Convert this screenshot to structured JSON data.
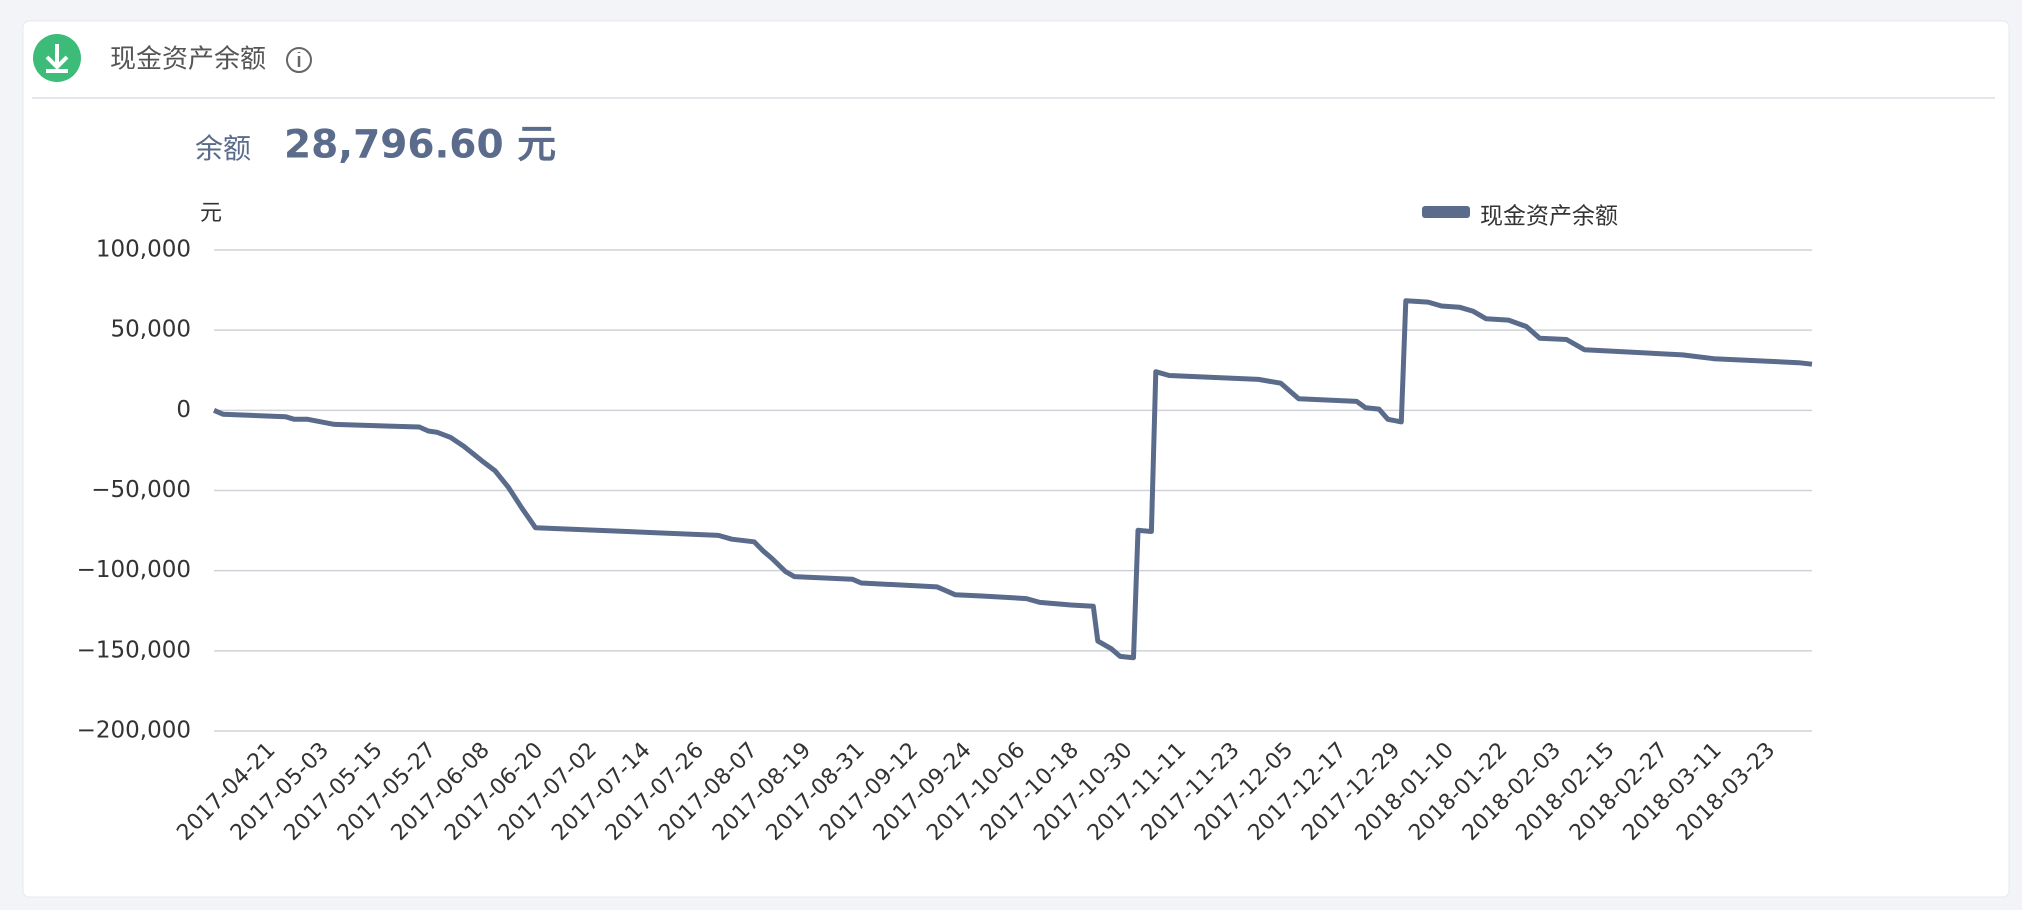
{
  "header": {
    "title": "现金资产余额"
  },
  "balance": {
    "label": "余额",
    "value": "28,796.60 元"
  },
  "chart_data": {
    "type": "line",
    "y_unit": "元",
    "legend": "top-right",
    "grid": true,
    "x": [
      "2017-04-08",
      "2017-04-10",
      "2017-04-24",
      "2017-04-26",
      "2017-04-29",
      "2017-05-05",
      "2017-05-24",
      "2017-05-26",
      "2017-05-28",
      "2017-05-31",
      "2017-06-03",
      "2017-06-07",
      "2017-06-10",
      "2017-06-13",
      "2017-06-16",
      "2017-06-18",
      "2017-06-19",
      "2017-07-30",
      "2017-08-02",
      "2017-08-07",
      "2017-08-09",
      "2017-08-11",
      "2017-08-14",
      "2017-08-16",
      "2017-08-29",
      "2017-08-31",
      "2017-09-17",
      "2017-09-19",
      "2017-09-21",
      "2017-09-27",
      "2017-10-07",
      "2017-10-10",
      "2017-10-17",
      "2017-10-22",
      "2017-10-23",
      "2017-10-26",
      "2017-10-28",
      "2017-10-31",
      "2017-11-01",
      "2017-11-04",
      "2017-11-05",
      "2017-11-08",
      "2017-11-28",
      "2017-12-03",
      "2017-12-07",
      "2017-12-20",
      "2017-12-22",
      "2017-12-25",
      "2017-12-27",
      "2017-12-30",
      "2017-12-31",
      "2018-01-05",
      "2018-01-08",
      "2018-01-12",
      "2018-01-15",
      "2018-01-18",
      "2018-01-23",
      "2018-01-27",
      "2018-01-30",
      "2018-02-05",
      "2018-02-09",
      "2018-03-03",
      "2018-03-10",
      "2018-03-29",
      "2018-04-01"
    ],
    "series": [
      {
        "name": "现金资产余额",
        "color": "#5a6b8c",
        "values": [
          0,
          -2400,
          -4000,
          -5600,
          -5600,
          -8800,
          -10400,
          -12900,
          -13700,
          -16900,
          -22500,
          -31400,
          -37800,
          -48200,
          -61100,
          -69100,
          -73200,
          -78000,
          -80400,
          -82000,
          -87600,
          -92400,
          -100500,
          -103700,
          -105300,
          -107700,
          -110100,
          -112500,
          -115000,
          -115800,
          -117400,
          -119800,
          -121400,
          -122200,
          -143900,
          -148700,
          -153500,
          -154300,
          -74800,
          -75600,
          24100,
          21700,
          19300,
          16900,
          7200,
          5600,
          1600,
          800,
          -5600,
          -7200,
          68300,
          67500,
          65100,
          64300,
          61900,
          57100,
          56300,
          52300,
          45000,
          44200,
          37800,
          34600,
          32200,
          29700,
          28797
        ]
      }
    ],
    "xlim": [
      "2017-04-08",
      "2018-04-01"
    ],
    "xticks": [
      "2017-04-21",
      "2017-05-03",
      "2017-05-15",
      "2017-05-27",
      "2017-06-08",
      "2017-06-20",
      "2017-07-02",
      "2017-07-14",
      "2017-07-26",
      "2017-08-07",
      "2017-08-19",
      "2017-08-31",
      "2017-09-12",
      "2017-09-24",
      "2017-10-06",
      "2017-10-18",
      "2017-10-30",
      "2017-11-11",
      "2017-11-23",
      "2017-12-05",
      "2017-12-17",
      "2017-12-29",
      "2018-01-10",
      "2018-01-22",
      "2018-02-03",
      "2018-02-15",
      "2018-02-27",
      "2018-03-11",
      "2018-03-23"
    ],
    "ylim": [
      -200000,
      100000
    ],
    "yticks": [
      {
        "value": -200000,
        "label": "−200,000"
      },
      {
        "value": -150000,
        "label": "−150,000"
      },
      {
        "value": -100000,
        "label": "−100,000"
      },
      {
        "value": -50000,
        "label": "−50,000"
      },
      0,
      {
        "value": 50000,
        "label": "50,000"
      },
      {
        "value": 100000,
        "label": "100,000"
      }
    ]
  }
}
